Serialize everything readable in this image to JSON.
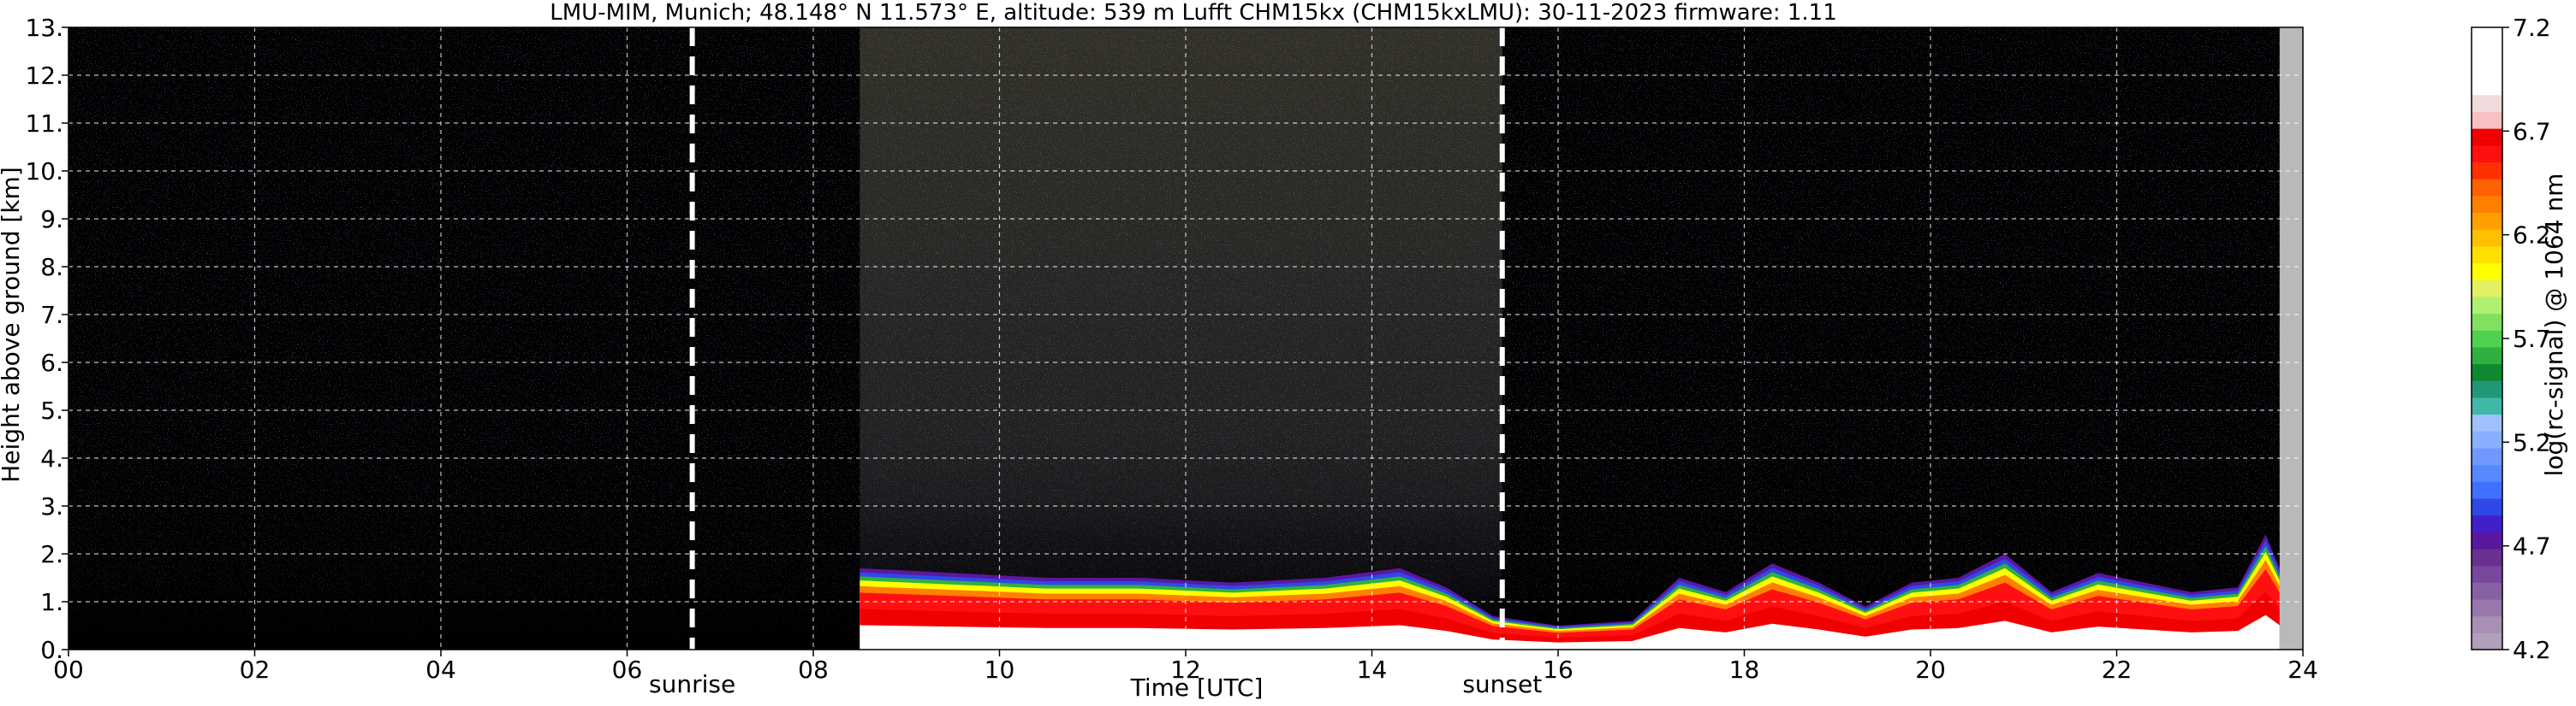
{
  "chart_data": {
    "type": "heatmap",
    "title": "LMU-MIM, Munich; 48.148° N 11.573° E, altitude: 539 m    Lufft CHM15kx (CHM15kxLMU): 30-11-2023    firmware: 1.11",
    "xlabel": "Time [UTC]",
    "ylabel": "Height above ground [km]",
    "xlim": [
      0,
      24
    ],
    "ylim": [
      0,
      13
    ],
    "x_ticks": [
      "00",
      "02",
      "04",
      "06",
      "08",
      "10",
      "12",
      "14",
      "16",
      "18",
      "20",
      "22",
      "24"
    ],
    "y_ticks": [
      "0.",
      "1.",
      "2.",
      "3.",
      "4.",
      "5.",
      "6.",
      "7.",
      "8.",
      "9.",
      "10.",
      "11.",
      "12.",
      "13."
    ],
    "grid": true,
    "events": [
      {
        "label": "sunrise",
        "time": 6.7
      },
      {
        "label": "sunset",
        "time": 15.4
      }
    ],
    "data_end_time": 23.75,
    "colorbar": {
      "label": "log(rc-signal) @ 1064 nm",
      "range": [
        4.2,
        7.2
      ],
      "ticks": [
        "4.2",
        "4.7",
        "5.2",
        "5.7",
        "6.2",
        "6.7",
        "7.2"
      ],
      "colors": [
        "#b0a0bc",
        "#a890b4",
        "#9878ac",
        "#8860a4",
        "#78489c",
        "#6a3090",
        "#5a18a0",
        "#4020c8",
        "#3048e8",
        "#4070ff",
        "#5888ff",
        "#7098ff",
        "#88b0ff",
        "#a0c0ff",
        "#40b8a8",
        "#209878",
        "#108830",
        "#30b040",
        "#50d050",
        "#80e060",
        "#b0f070",
        "#e0f060",
        "#ffff00",
        "#ffe000",
        "#ffc000",
        "#ffa000",
        "#ff8000",
        "#ff6000",
        "#ff3000",
        "#ff1010",
        "#f00000",
        "#f8c0c0",
        "#f0dcdc",
        "#ffffff",
        "#ffffff",
        "#ffffff",
        "#ffffff"
      ]
    },
    "aerosol_layer_top_km": [
      [
        8.5,
        1.7
      ],
      [
        9.5,
        1.6
      ],
      [
        10.5,
        1.5
      ],
      [
        11.5,
        1.5
      ],
      [
        12.5,
        1.4
      ],
      [
        13.5,
        1.5
      ],
      [
        14.3,
        1.7
      ],
      [
        14.8,
        1.3
      ],
      [
        15.3,
        0.7
      ],
      [
        16.0,
        0.5
      ],
      [
        16.8,
        0.6
      ],
      [
        17.3,
        1.5
      ],
      [
        17.8,
        1.2
      ],
      [
        18.3,
        1.8
      ],
      [
        18.8,
        1.4
      ],
      [
        19.3,
        0.9
      ],
      [
        19.8,
        1.4
      ],
      [
        20.3,
        1.5
      ],
      [
        20.8,
        2.0
      ],
      [
        21.3,
        1.2
      ],
      [
        21.8,
        1.6
      ],
      [
        22.3,
        1.4
      ],
      [
        22.8,
        1.2
      ],
      [
        23.3,
        1.3
      ],
      [
        23.6,
        2.4
      ],
      [
        23.75,
        1.7
      ]
    ]
  }
}
